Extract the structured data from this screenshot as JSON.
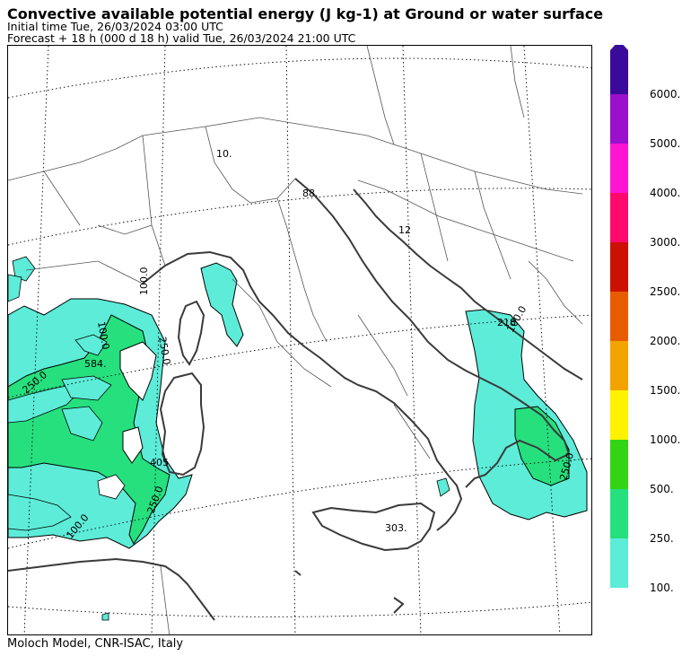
{
  "header": {
    "title": "Convective available potential energy (J kg-1) at Ground or water surface",
    "initial_time": "Initial time  Tue, 26/03/2024  03:00 UTC",
    "forecast": "Forecast  +  18 h  (000 d 18 h)  valid Tue, 26/03/2024 21:00 UTC"
  },
  "footer": {
    "credit": "Moloch Model, CNR-ISAC, Italy"
  },
  "legend": {
    "levels": [
      {
        "label": "100.",
        "color": "#5cecd8"
      },
      {
        "label": "250.",
        "color": "#26e07e"
      },
      {
        "label": "500.",
        "color": "#33d414"
      },
      {
        "label": "1000.",
        "color": "#fff200"
      },
      {
        "label": "1500.",
        "color": "#f2a300"
      },
      {
        "label": "2000.",
        "color": "#e85c00"
      },
      {
        "label": "2500.",
        "color": "#cc1100"
      },
      {
        "label": "3000.",
        "color": "#ff0a6c"
      },
      {
        "label": "4000.",
        "color": "#ff14d2"
      },
      {
        "label": "5000.",
        "color": "#9a10cc"
      },
      {
        "label": "6000.",
        "color": "#3a0a9a"
      }
    ]
  },
  "map_labels": {
    "l10": "10.",
    "l88": "88.",
    "l12": "12",
    "l218": "218",
    "l584": "584.",
    "l405": "405",
    "l303": "303.",
    "c100a": "100.0",
    "c250a": "250.0",
    "c100b": "100.0",
    "c250b": "250.0",
    "c100c": "100.0",
    "c250c": "250.0",
    "c100d": "100.0",
    "c250d": "250.0"
  },
  "colors": {
    "land_border": "#444444",
    "coast": "#3a3a3a",
    "grid": "#000000"
  }
}
